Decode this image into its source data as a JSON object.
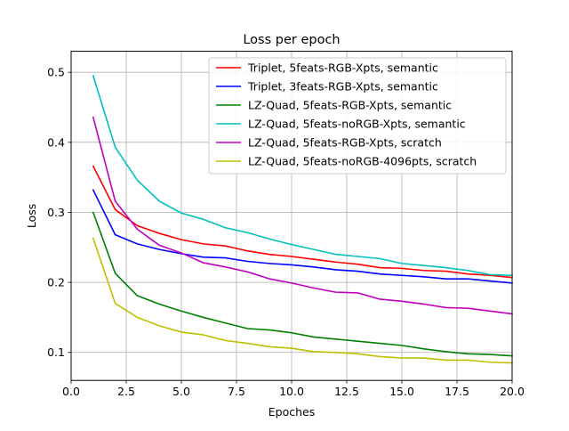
{
  "chart_data": {
    "type": "line",
    "title": "Loss per epoch",
    "xlabel": "Epoches",
    "ylabel": "Loss",
    "xlim": [
      0,
      20
    ],
    "ylim": [
      0.06,
      0.53
    ],
    "xticks": [
      0.0,
      2.5,
      5.0,
      7.5,
      10.0,
      12.5,
      15.0,
      17.5,
      20.0
    ],
    "xtick_labels": [
      "0.0",
      "2.5",
      "5.0",
      "7.5",
      "10.0",
      "12.5",
      "15.0",
      "17.5",
      "20.0"
    ],
    "yticks": [
      0.1,
      0.2,
      0.3,
      0.4,
      0.5
    ],
    "ytick_labels": [
      "0.1",
      "0.2",
      "0.3",
      "0.4",
      "0.5"
    ],
    "grid": true,
    "legend_position": "top-right",
    "x": [
      1,
      2,
      3,
      4,
      5,
      6,
      7,
      8,
      9,
      10,
      11,
      12,
      13,
      14,
      15,
      16,
      17,
      18,
      19,
      20
    ],
    "series": [
      {
        "name": "Triplet, 5feats-RGB-Xpts, semantic",
        "color": "#ff0000",
        "values": [
          0.366,
          0.304,
          0.281,
          0.27,
          0.261,
          0.255,
          0.252,
          0.245,
          0.24,
          0.237,
          0.233,
          0.229,
          0.226,
          0.221,
          0.22,
          0.217,
          0.216,
          0.212,
          0.21,
          0.207
        ]
      },
      {
        "name": "Triplet, 3feats-RGB-Xpts, semantic",
        "color": "#0000ff",
        "values": [
          0.332,
          0.268,
          0.255,
          0.247,
          0.241,
          0.236,
          0.235,
          0.23,
          0.227,
          0.225,
          0.222,
          0.218,
          0.216,
          0.212,
          0.21,
          0.208,
          0.205,
          0.205,
          0.202,
          0.199
        ]
      },
      {
        "name": "LZ-Quad, 5feats-RGB-Xpts, semantic",
        "color": "#008000",
        "values": [
          0.3,
          0.213,
          0.181,
          0.169,
          0.159,
          0.15,
          0.142,
          0.134,
          0.132,
          0.128,
          0.122,
          0.119,
          0.116,
          0.113,
          0.11,
          0.105,
          0.101,
          0.098,
          0.097,
          0.095
        ]
      },
      {
        "name": "LZ-Quad, 5feats-noRGB-Xpts, semantic",
        "color": "#00bfbf",
        "values": [
          0.495,
          0.393,
          0.346,
          0.316,
          0.299,
          0.29,
          0.278,
          0.271,
          0.262,
          0.254,
          0.247,
          0.24,
          0.237,
          0.234,
          0.227,
          0.224,
          0.221,
          0.217,
          0.211,
          0.21
        ]
      },
      {
        "name": "LZ-Quad, 5feats-RGB-Xpts, scratch",
        "color": "#bf00bf",
        "values": [
          0.436,
          0.316,
          0.276,
          0.253,
          0.242,
          0.228,
          0.222,
          0.215,
          0.205,
          0.199,
          0.192,
          0.186,
          0.185,
          0.176,
          0.173,
          0.169,
          0.164,
          0.163,
          0.159,
          0.155
        ]
      },
      {
        "name": "LZ-Quad, 5feats-noRGB-4096pts, scratch",
        "color": "#bfbf00",
        "values": [
          0.263,
          0.17,
          0.15,
          0.138,
          0.129,
          0.125,
          0.117,
          0.113,
          0.108,
          0.106,
          0.101,
          0.1,
          0.098,
          0.094,
          0.092,
          0.092,
          0.089,
          0.089,
          0.086,
          0.085
        ]
      }
    ]
  }
}
